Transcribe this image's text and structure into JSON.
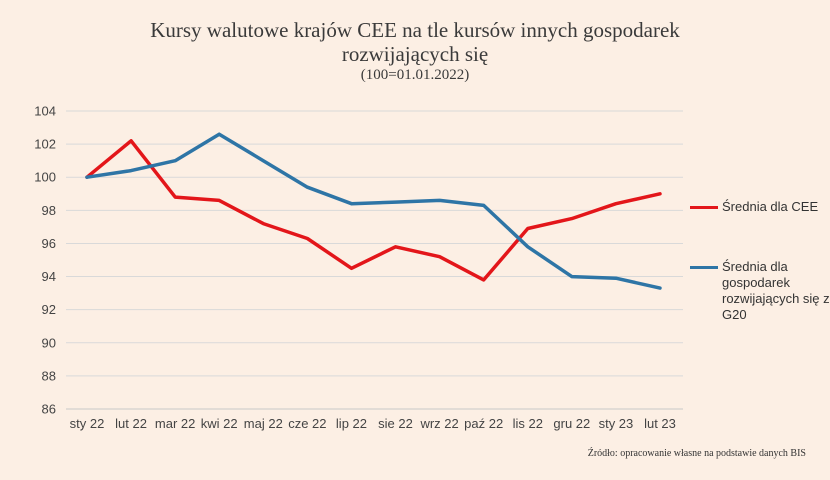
{
  "chart_data": {
    "type": "line",
    "title": "Kursy walutowe krajów CEE na tle kursów innych gospodarek",
    "title_line2": "rozwijających się",
    "subtitle": "(100=01.01.2022)",
    "categories": [
      "sty 22",
      "lut 22",
      "mar 22",
      "kwi 22",
      "maj 22",
      "cze 22",
      "lip 22",
      "sie 22",
      "wrz 22",
      "paź 22",
      "lis 22",
      "gru 22",
      "sty 23",
      "lut 23"
    ],
    "ylim": [
      86,
      104
    ],
    "yticks": [
      86,
      88,
      90,
      92,
      94,
      96,
      98,
      100,
      102,
      104
    ],
    "grid": true,
    "legend_position": "right",
    "series": [
      {
        "name": "Średnia dla CEE",
        "color": "#e3161a",
        "values": [
          100.0,
          102.2,
          98.8,
          98.6,
          97.2,
          96.3,
          94.5,
          95.8,
          95.2,
          93.8,
          96.9,
          97.5,
          98.4,
          99.0
        ]
      },
      {
        "name": "Średnia dla gospodarek rozwijających się z G20",
        "color": "#2e75a6",
        "values": [
          100.0,
          100.4,
          101.0,
          102.6,
          101.0,
          99.4,
          98.4,
          98.5,
          98.6,
          98.3,
          95.8,
          94.0,
          93.9,
          93.3
        ]
      }
    ],
    "source": "Źródło: opracowanie własne na podstawie danych BIS"
  }
}
